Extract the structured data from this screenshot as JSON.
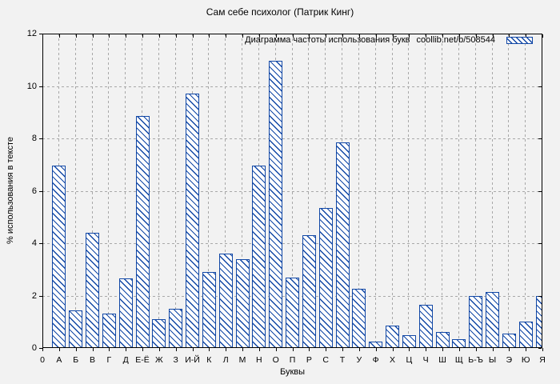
{
  "colors": {
    "bar_blue": "#1147a5",
    "grid_gray": "#a8a8a8",
    "background": "#f2f2f2",
    "frame": "#000000"
  },
  "chart_data": {
    "type": "bar",
    "title": "Сам себе психолог (Патрик Кинг)",
    "legend": "Диаграмма частоты использования букв coollib.net/b/508544",
    "legend_label": "Диаграмма частоты использования букв",
    "legend_source": "coollib.net/b/508544",
    "legend_position": "top-right",
    "xlabel": "Буквы",
    "ylabel": "% использования в тексте",
    "x_axis_origin_label": "0",
    "ylim": [
      0,
      12
    ],
    "yticks": [
      0,
      2,
      4,
      6,
      8,
      10,
      12
    ],
    "grid": true,
    "bar_style": "hatched",
    "categories": [
      "А",
      "Б",
      "В",
      "Г",
      "Д",
      "Е-Ё",
      "Ж",
      "З",
      "И-Й",
      "К",
      "Л",
      "М",
      "Н",
      "О",
      "П",
      "Р",
      "С",
      "Т",
      "У",
      "Ф",
      "Х",
      "Ц",
      "Ч",
      "Ш",
      "Щ",
      "Ь-Ъ",
      "Ы",
      "Э",
      "Ю",
      "Я"
    ],
    "values": [
      6.95,
      1.45,
      4.4,
      1.3,
      2.65,
      8.85,
      1.1,
      1.5,
      9.7,
      2.9,
      3.6,
      3.4,
      6.95,
      10.95,
      2.7,
      4.3,
      5.35,
      7.85,
      2.25,
      0.25,
      0.85,
      0.5,
      1.65,
      0.6,
      0.35,
      2.0,
      2.15,
      0.55,
      1.0,
      2.0
    ]
  }
}
